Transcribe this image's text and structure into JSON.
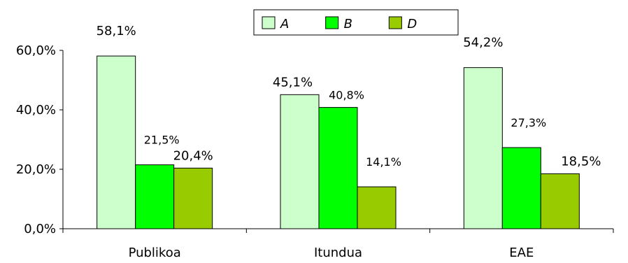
{
  "chart_data": {
    "type": "bar",
    "categories": [
      "Publikoa",
      "Itundua",
      "EAE"
    ],
    "series": [
      {
        "name": "A",
        "values": [
          58.1,
          45.1,
          54.2
        ],
        "labels": [
          "58,1%",
          "45,1%",
          "54,2%"
        ],
        "color": "#ccffcc"
      },
      {
        "name": "B",
        "values": [
          21.5,
          40.8,
          27.3
        ],
        "labels": [
          "21,5%",
          "40,8%",
          "27,3%"
        ],
        "color": "#00ff00"
      },
      {
        "name": "D",
        "values": [
          20.4,
          14.1,
          18.5
        ],
        "labels": [
          "20,4%",
          "14,1%",
          "18,5%"
        ],
        "color": "#99cc00"
      }
    ],
    "ylim": [
      0,
      60
    ],
    "yticks": [
      0,
      20,
      40,
      60
    ],
    "ytick_labels": [
      "0,0%",
      "20,0%",
      "40,0%",
      "60,0%"
    ],
    "title": "",
    "xlabel": "",
    "ylabel": "",
    "legend_position": "top-center",
    "grid": false
  }
}
